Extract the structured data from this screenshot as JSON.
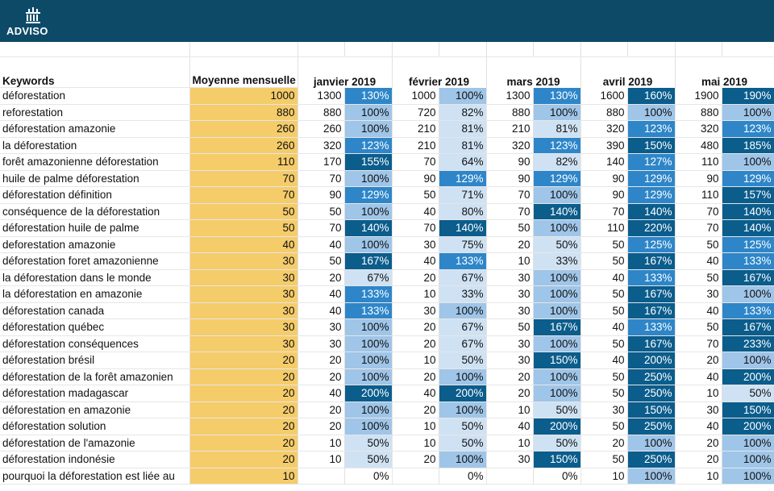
{
  "brand": {
    "name": "ADVISO"
  },
  "headers": {
    "keywords": "Keywords",
    "average": "Moyenne mensuelle",
    "months": [
      "janvier 2019",
      "février 2019",
      "mars 2019",
      "avril 2019",
      "mai 2019"
    ]
  },
  "colors": {
    "avg": "#f5cc6a",
    "light": "#cfe2f3",
    "mid": "#9fc5e8",
    "bright": "#2e86c9",
    "dark": "#0b5d8c",
    "header": "#0d4a68"
  },
  "rows": [
    {
      "kw": "déforestation",
      "avg": "1000",
      "m": [
        [
          "1300",
          "130%"
        ],
        [
          "1000",
          "100%"
        ],
        [
          "1300",
          "130%"
        ],
        [
          "1600",
          "160%"
        ],
        [
          "1900",
          "190%"
        ]
      ]
    },
    {
      "kw": "reforestation",
      "avg": "880",
      "m": [
        [
          "880",
          "100%"
        ],
        [
          "720",
          "82%"
        ],
        [
          "880",
          "100%"
        ],
        [
          "880",
          "100%"
        ],
        [
          "880",
          "100%"
        ]
      ]
    },
    {
      "kw": "déforestation amazonie",
      "avg": "260",
      "m": [
        [
          "260",
          "100%"
        ],
        [
          "210",
          "81%"
        ],
        [
          "210",
          "81%"
        ],
        [
          "320",
          "123%"
        ],
        [
          "320",
          "123%"
        ]
      ]
    },
    {
      "kw": "la déforestation",
      "avg": "260",
      "m": [
        [
          "320",
          "123%"
        ],
        [
          "210",
          "81%"
        ],
        [
          "320",
          "123%"
        ],
        [
          "390",
          "150%"
        ],
        [
          "480",
          "185%"
        ]
      ]
    },
    {
      "kw": "forêt amazonienne déforestation",
      "avg": "110",
      "m": [
        [
          "170",
          "155%"
        ],
        [
          "70",
          "64%"
        ],
        [
          "90",
          "82%"
        ],
        [
          "140",
          "127%"
        ],
        [
          "110",
          "100%"
        ]
      ]
    },
    {
      "kw": "huile de palme déforestation",
      "avg": "70",
      "m": [
        [
          "70",
          "100%"
        ],
        [
          "90",
          "129%"
        ],
        [
          "90",
          "129%"
        ],
        [
          "90",
          "129%"
        ],
        [
          "90",
          "129%"
        ]
      ]
    },
    {
      "kw": "déforestation définition",
      "avg": "70",
      "m": [
        [
          "90",
          "129%"
        ],
        [
          "50",
          "71%"
        ],
        [
          "70",
          "100%"
        ],
        [
          "90",
          "129%"
        ],
        [
          "110",
          "157%"
        ]
      ]
    },
    {
      "kw": "conséquence de la déforestation",
      "avg": "50",
      "m": [
        [
          "50",
          "100%"
        ],
        [
          "40",
          "80%"
        ],
        [
          "70",
          "140%"
        ],
        [
          "70",
          "140%"
        ],
        [
          "70",
          "140%"
        ]
      ]
    },
    {
      "kw": "déforestation huile de palme",
      "avg": "50",
      "m": [
        [
          "70",
          "140%"
        ],
        [
          "70",
          "140%"
        ],
        [
          "50",
          "100%"
        ],
        [
          "110",
          "220%"
        ],
        [
          "70",
          "140%"
        ]
      ]
    },
    {
      "kw": "deforestation amazonie",
      "avg": "40",
      "m": [
        [
          "40",
          "100%"
        ],
        [
          "30",
          "75%"
        ],
        [
          "20",
          "50%"
        ],
        [
          "50",
          "125%"
        ],
        [
          "50",
          "125%"
        ]
      ]
    },
    {
      "kw": "déforestation foret amazonienne",
      "avg": "30",
      "m": [
        [
          "50",
          "167%"
        ],
        [
          "40",
          "133%"
        ],
        [
          "10",
          "33%"
        ],
        [
          "50",
          "167%"
        ],
        [
          "40",
          "133%"
        ]
      ]
    },
    {
      "kw": "la déforestation dans le monde",
      "avg": "30",
      "m": [
        [
          "20",
          "67%"
        ],
        [
          "20",
          "67%"
        ],
        [
          "30",
          "100%"
        ],
        [
          "40",
          "133%"
        ],
        [
          "50",
          "167%"
        ]
      ]
    },
    {
      "kw": "la déforestation en amazonie",
      "avg": "30",
      "m": [
        [
          "40",
          "133%"
        ],
        [
          "10",
          "33%"
        ],
        [
          "30",
          "100%"
        ],
        [
          "50",
          "167%"
        ],
        [
          "30",
          "100%"
        ]
      ]
    },
    {
      "kw": "déforestation canada",
      "avg": "30",
      "m": [
        [
          "40",
          "133%"
        ],
        [
          "30",
          "100%"
        ],
        [
          "30",
          "100%"
        ],
        [
          "50",
          "167%"
        ],
        [
          "40",
          "133%"
        ]
      ]
    },
    {
      "kw": "déforestation québec",
      "avg": "30",
      "m": [
        [
          "30",
          "100%"
        ],
        [
          "20",
          "67%"
        ],
        [
          "50",
          "167%"
        ],
        [
          "40",
          "133%"
        ],
        [
          "50",
          "167%"
        ]
      ]
    },
    {
      "kw": "déforestation conséquences",
      "avg": "30",
      "m": [
        [
          "30",
          "100%"
        ],
        [
          "20",
          "67%"
        ],
        [
          "30",
          "100%"
        ],
        [
          "50",
          "167%"
        ],
        [
          "70",
          "233%"
        ]
      ]
    },
    {
      "kw": "déforestation brésil",
      "avg": "20",
      "m": [
        [
          "20",
          "100%"
        ],
        [
          "10",
          "50%"
        ],
        [
          "30",
          "150%"
        ],
        [
          "40",
          "200%"
        ],
        [
          "20",
          "100%"
        ]
      ]
    },
    {
      "kw": "déforestation de la forêt amazonien",
      "avg": "20",
      "m": [
        [
          "20",
          "100%"
        ],
        [
          "20",
          "100%"
        ],
        [
          "20",
          "100%"
        ],
        [
          "50",
          "250%"
        ],
        [
          "40",
          "200%"
        ]
      ]
    },
    {
      "kw": "déforestation madagascar",
      "avg": "20",
      "m": [
        [
          "40",
          "200%"
        ],
        [
          "40",
          "200%"
        ],
        [
          "20",
          "100%"
        ],
        [
          "50",
          "250%"
        ],
        [
          "10",
          "50%"
        ]
      ]
    },
    {
      "kw": "déforestation en amazonie",
      "avg": "20",
      "m": [
        [
          "20",
          "100%"
        ],
        [
          "20",
          "100%"
        ],
        [
          "10",
          "50%"
        ],
        [
          "30",
          "150%"
        ],
        [
          "30",
          "150%"
        ]
      ]
    },
    {
      "kw": "déforestation solution",
      "avg": "20",
      "m": [
        [
          "20",
          "100%"
        ],
        [
          "10",
          "50%"
        ],
        [
          "40",
          "200%"
        ],
        [
          "50",
          "250%"
        ],
        [
          "40",
          "200%"
        ]
      ]
    },
    {
      "kw": "déforestation de l'amazonie",
      "avg": "20",
      "m": [
        [
          "10",
          "50%"
        ],
        [
          "10",
          "50%"
        ],
        [
          "10",
          "50%"
        ],
        [
          "20",
          "100%"
        ],
        [
          "20",
          "100%"
        ]
      ]
    },
    {
      "kw": "déforestation indonésie",
      "avg": "20",
      "m": [
        [
          "10",
          "50%"
        ],
        [
          "20",
          "100%"
        ],
        [
          "30",
          "150%"
        ],
        [
          "50",
          "250%"
        ],
        [
          "20",
          "100%"
        ]
      ]
    },
    {
      "kw": "pourquoi la déforestation est liée au",
      "avg": "10",
      "m": [
        [
          "",
          "0%"
        ],
        [
          "",
          "0%"
        ],
        [
          "",
          "0%"
        ],
        [
          "10",
          "100%"
        ],
        [
          "10",
          "100%"
        ]
      ]
    }
  ]
}
